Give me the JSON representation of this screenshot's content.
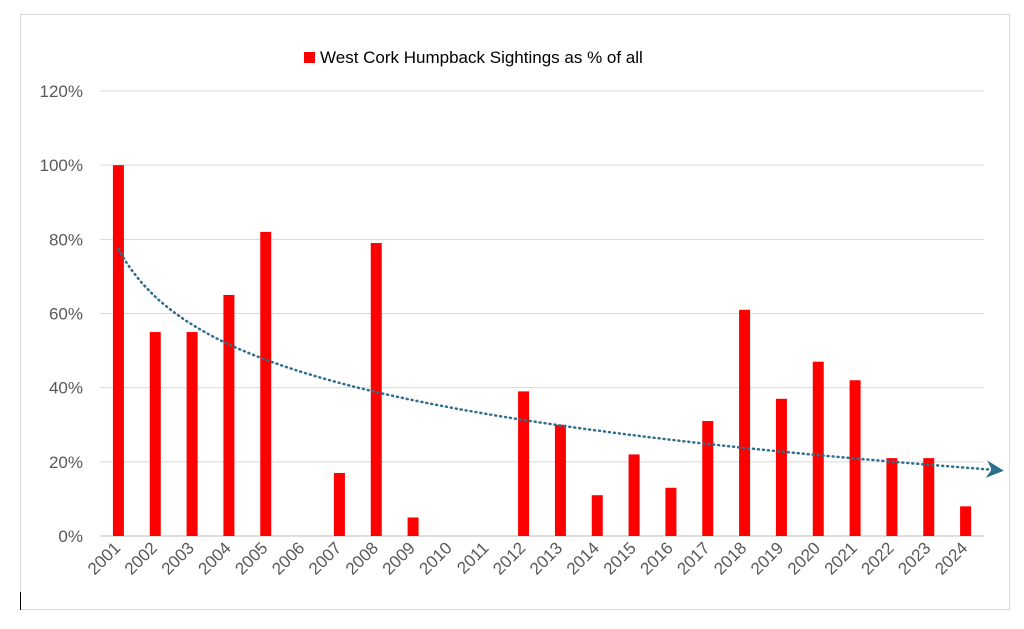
{
  "chart_data": {
    "type": "bar",
    "title": "",
    "xlabel": "",
    "ylabel": "",
    "categories": [
      "2001",
      "2002",
      "2003",
      "2004",
      "2005",
      "2006",
      "2007",
      "2008",
      "2009",
      "2010",
      "2011",
      "2012",
      "2013",
      "2014",
      "2015",
      "2016",
      "2017",
      "2018",
      "2019",
      "2020",
      "2021",
      "2022",
      "2023",
      "2024"
    ],
    "series": [
      {
        "name": "West Cork Humpback Sightings as % of all",
        "color": "#ff0000",
        "values": [
          100,
          55,
          55,
          65,
          82,
          0,
          17,
          79,
          5,
          0,
          0,
          39,
          30,
          11,
          22,
          13,
          31,
          61,
          37,
          47,
          42,
          21,
          21,
          8
        ]
      }
    ],
    "trendline": {
      "type": "logarithmic",
      "color": "#2e6f8e",
      "style": "dotted",
      "arrow": true
    },
    "ylim": [
      0,
      120
    ],
    "yticks": [
      0,
      20,
      40,
      60,
      80,
      100,
      120
    ],
    "ytick_labels": [
      "0%",
      "20%",
      "40%",
      "60%",
      "80%",
      "100%",
      "120%"
    ],
    "grid": true,
    "legend": "top"
  }
}
